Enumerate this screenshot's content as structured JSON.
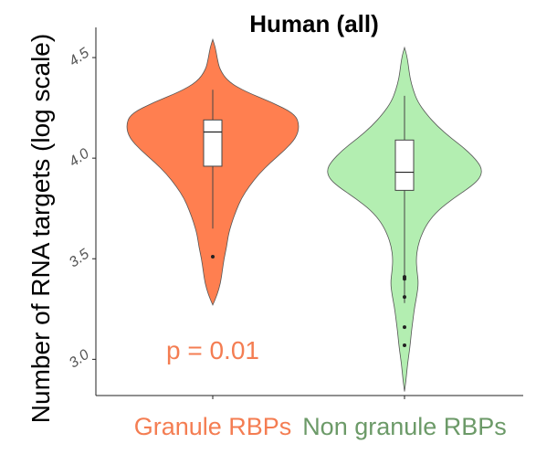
{
  "chart_data": {
    "type": "violin",
    "title": "Human (all)",
    "ylabel": "Number of RNA targets (log scale)",
    "xlabel": "",
    "y_scale": "log10",
    "ylim": [
      2.82,
      4.65
    ],
    "yticks": [
      "3.0",
      "3.5",
      "4.0",
      "4.5"
    ],
    "grid": false,
    "categories": [
      "Granule RBPs",
      "Non granule RBPs"
    ],
    "colors": {
      "granule_fill": "#ff7f50",
      "granule_label": "#f47d52",
      "non_granule_fill": "#b3eeb1",
      "non_granule_label": "#6c9a68",
      "outline": "#555555",
      "annotation": "#f47d52"
    },
    "series": [
      {
        "name": "Granule RBPs",
        "ymin": 3.27,
        "ymax": 4.59,
        "box": {
          "whisker_low": 3.65,
          "q1": 3.96,
          "median": 4.13,
          "q3": 4.19,
          "whisker_high": 4.34
        },
        "outliers": [
          3.51
        ],
        "density": [
          [
            3.27,
            0.0
          ],
          [
            3.32,
            0.05
          ],
          [
            3.38,
            0.09
          ],
          [
            3.44,
            0.11
          ],
          [
            3.5,
            0.13
          ],
          [
            3.56,
            0.16
          ],
          [
            3.62,
            0.18
          ],
          [
            3.68,
            0.22
          ],
          [
            3.74,
            0.27
          ],
          [
            3.8,
            0.33
          ],
          [
            3.86,
            0.42
          ],
          [
            3.92,
            0.53
          ],
          [
            3.98,
            0.67
          ],
          [
            4.04,
            0.83
          ],
          [
            4.1,
            0.96
          ],
          [
            4.16,
            1.0
          ],
          [
            4.22,
            0.95
          ],
          [
            4.28,
            0.67
          ],
          [
            4.33,
            0.38
          ],
          [
            4.38,
            0.18
          ],
          [
            4.44,
            0.08
          ],
          [
            4.5,
            0.05
          ],
          [
            4.55,
            0.03
          ],
          [
            4.59,
            0.0
          ]
        ]
      },
      {
        "name": "Non granule RBPs",
        "ymin": 2.84,
        "ymax": 4.55,
        "box": {
          "whisker_low": 3.28,
          "q1": 3.84,
          "median": 3.93,
          "q3": 4.09,
          "whisker_high": 4.31
        },
        "outliers": [
          3.41,
          3.4,
          3.31,
          3.16,
          3.07
        ],
        "density": [
          [
            2.84,
            0.0
          ],
          [
            2.9,
            0.02
          ],
          [
            2.98,
            0.04
          ],
          [
            3.06,
            0.07
          ],
          [
            3.14,
            0.09
          ],
          [
            3.2,
            0.11
          ],
          [
            3.26,
            0.13
          ],
          [
            3.32,
            0.16
          ],
          [
            3.38,
            0.18
          ],
          [
            3.44,
            0.16
          ],
          [
            3.5,
            0.15
          ],
          [
            3.56,
            0.17
          ],
          [
            3.62,
            0.22
          ],
          [
            3.68,
            0.3
          ],
          [
            3.74,
            0.43
          ],
          [
            3.8,
            0.63
          ],
          [
            3.86,
            0.86
          ],
          [
            3.9,
            0.97
          ],
          [
            3.94,
            1.0
          ],
          [
            3.98,
            0.95
          ],
          [
            4.04,
            0.8
          ],
          [
            4.1,
            0.6
          ],
          [
            4.16,
            0.42
          ],
          [
            4.22,
            0.28
          ],
          [
            4.28,
            0.17
          ],
          [
            4.34,
            0.11
          ],
          [
            4.4,
            0.07
          ],
          [
            4.46,
            0.05
          ],
          [
            4.51,
            0.03
          ],
          [
            4.55,
            0.0
          ]
        ]
      }
    ],
    "annotations": [
      {
        "text": "p = 0.01"
      }
    ]
  }
}
